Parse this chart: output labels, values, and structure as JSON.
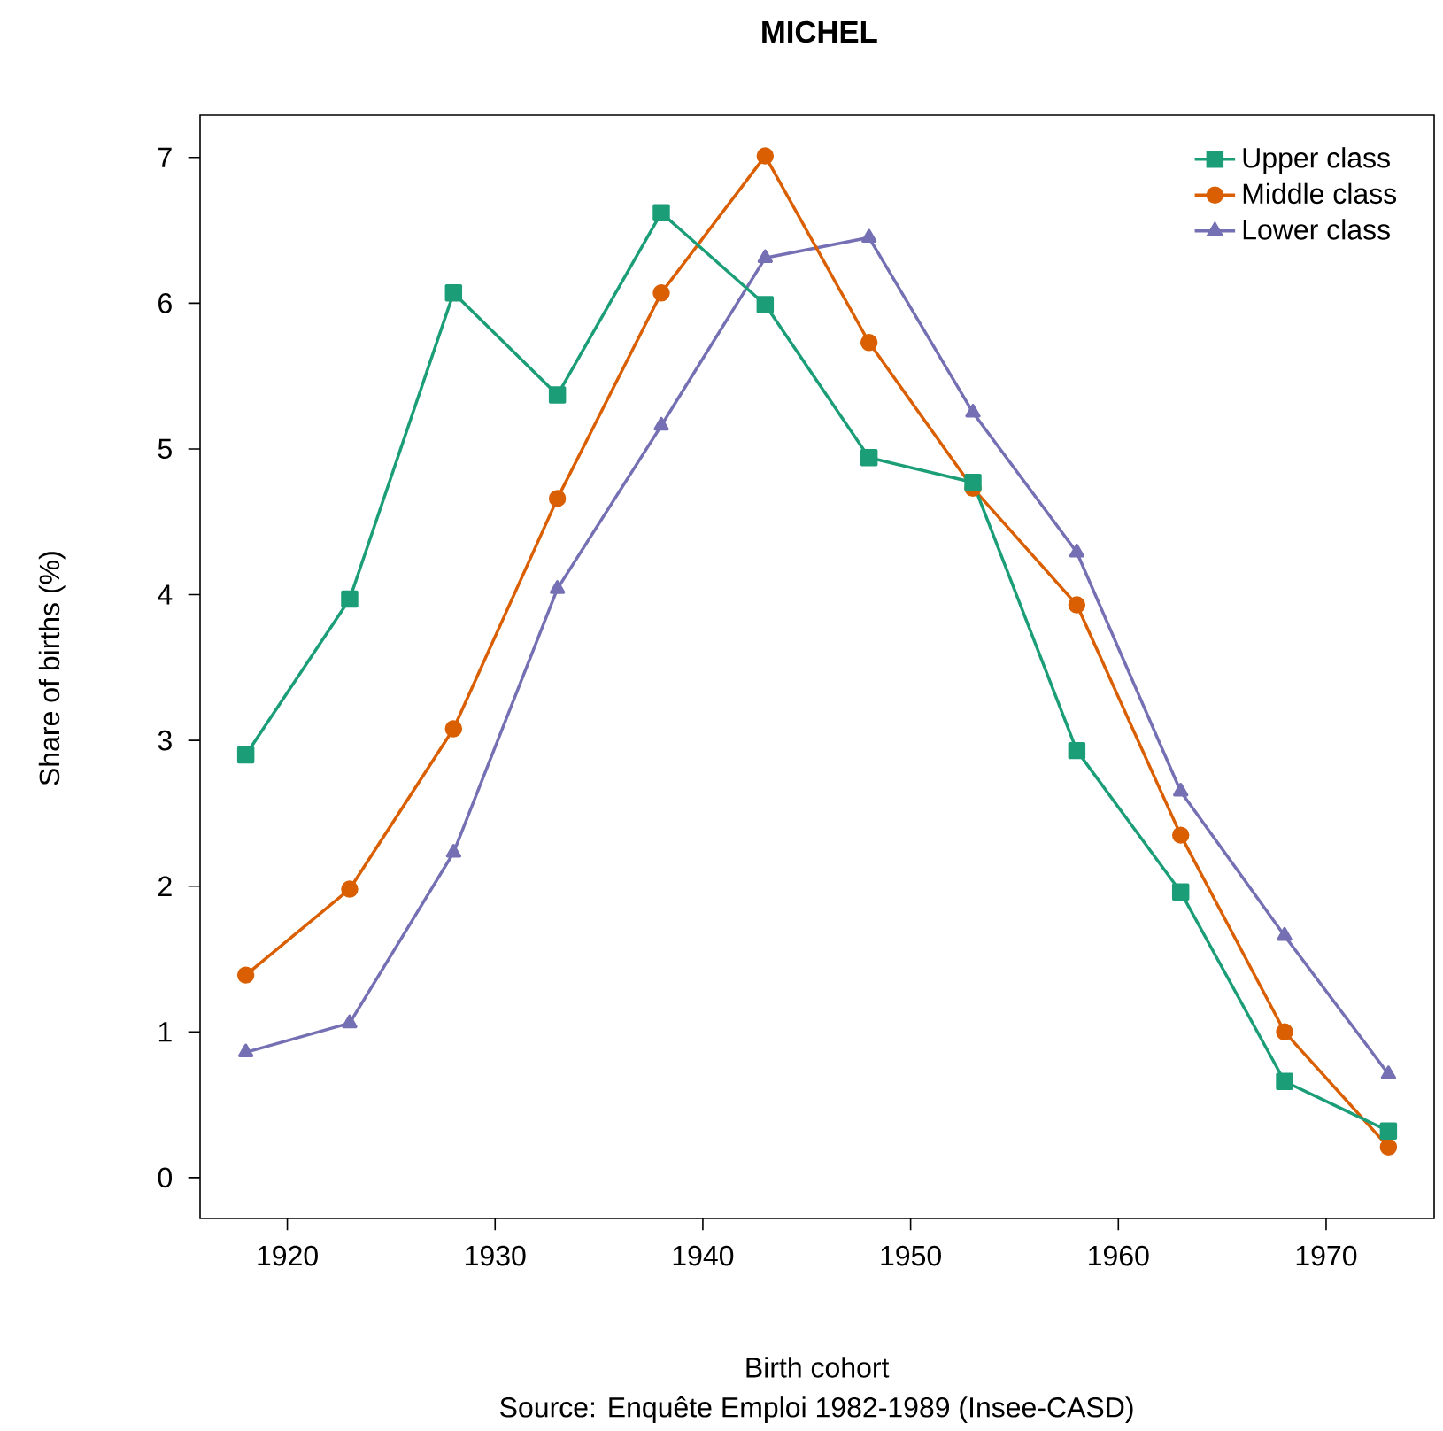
{
  "chart_data": {
    "type": "line",
    "title": "MICHEL",
    "xlabel": "Birth cohort",
    "ylabel": "Share of births (%)",
    "annotations": [
      "Source: Enquête Emploi 1982-1989 (Insee-CASD)"
    ],
    "x": [
      1918,
      1923,
      1928,
      1933,
      1938,
      1943,
      1948,
      1953,
      1958,
      1963,
      1968,
      1973
    ],
    "series": [
      {
        "name": "Upper class",
        "color": "#1b9e77",
        "marker": "square",
        "values": [
          2.9,
          3.97,
          6.07,
          5.37,
          6.62,
          5.99,
          4.94,
          4.77,
          2.93,
          1.96,
          0.66,
          0.32
        ]
      },
      {
        "name": "Middle class",
        "color": "#d95f02",
        "marker": "circle",
        "values": [
          1.39,
          1.98,
          3.08,
          4.66,
          6.07,
          7.01,
          5.73,
          4.73,
          3.93,
          2.35,
          1.0,
          0.21
        ]
      },
      {
        "name": "Lower class",
        "color": "#7570b3",
        "marker": "triangle",
        "values": [
          0.86,
          1.06,
          2.23,
          4.04,
          5.16,
          6.31,
          6.45,
          5.25,
          4.29,
          2.65,
          1.66,
          0.71
        ]
      }
    ],
    "xlim": [
      1915.8,
      1975.2
    ],
    "ylim": [
      -0.28,
      7.29
    ],
    "xticks": [
      1920,
      1930,
      1940,
      1950,
      1960,
      1970
    ],
    "yticks": [
      0,
      1,
      2,
      3,
      4,
      5,
      6,
      7
    ],
    "grid": false,
    "legend": "top right",
    "line_style": "solid"
  }
}
